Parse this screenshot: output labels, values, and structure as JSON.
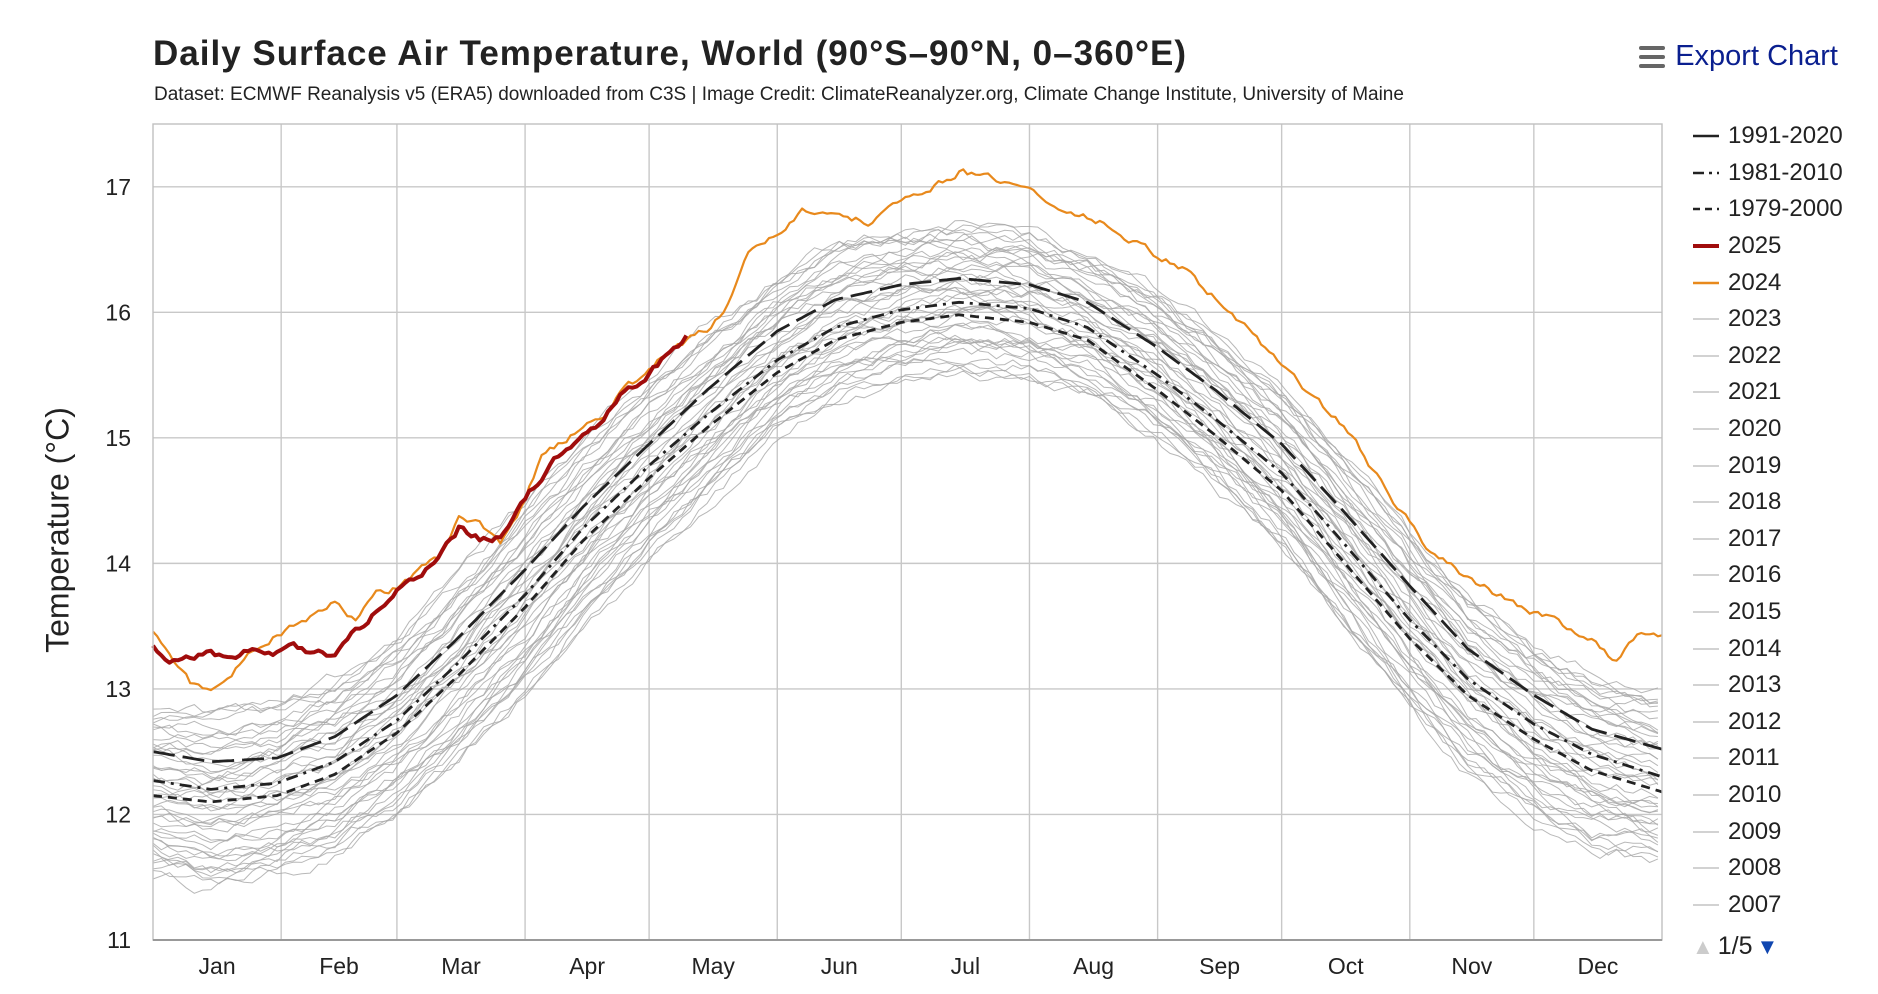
{
  "header": {
    "title": "Daily Surface Air Temperature, World (90°S–90°N, 0–360°E)",
    "subtitle": "Dataset: ECMWF Reanalysis v5 (ERA5) downloaded from C3S | Image Credit: ClimateReanalyzer.org, Climate Change Institute, University of Maine",
    "export_label": "Export Chart",
    "export_icon": "hamburger-menu-icon"
  },
  "legend": {
    "page_label": "1/5",
    "page_up_icon": "triangle-up-icon",
    "page_down_icon": "triangle-down-icon"
  },
  "colors": {
    "climatology": "#222222",
    "year_2025": "#a00c0c",
    "year_2024": "#e8891c",
    "past_years": "#a6a6a6",
    "grid": "#c8c8c8"
  },
  "chart_data": {
    "type": "line",
    "title": "Daily Surface Air Temperature, World (90°S–90°N, 0–360°E)",
    "ylabel": "Temperature (°C)",
    "xlabel": "",
    "ylim": [
      11,
      17.5
    ],
    "xlim_day_of_year": [
      1,
      366
    ],
    "yticks": [
      11,
      12,
      13,
      14,
      15,
      16,
      17
    ],
    "months": [
      "Jan",
      "Feb",
      "Mar",
      "Apr",
      "May",
      "Jun",
      "Jul",
      "Aug",
      "Sep",
      "Oct",
      "Nov",
      "Dec"
    ],
    "grid": true,
    "legend_position": "right",
    "series": [
      {
        "name": "1991-2020",
        "style": "longdash",
        "color": "#222222",
        "points": [
          [
            1,
            12.5
          ],
          [
            15,
            12.42
          ],
          [
            31,
            12.45
          ],
          [
            45,
            12.62
          ],
          [
            60,
            12.95
          ],
          [
            74,
            13.38
          ],
          [
            91,
            13.95
          ],
          [
            105,
            14.45
          ],
          [
            121,
            14.95
          ],
          [
            135,
            15.38
          ],
          [
            152,
            15.85
          ],
          [
            166,
            16.1
          ],
          [
            182,
            16.22
          ],
          [
            196,
            16.27
          ],
          [
            213,
            16.22
          ],
          [
            227,
            16.08
          ],
          [
            244,
            15.72
          ],
          [
            258,
            15.38
          ],
          [
            274,
            14.95
          ],
          [
            288,
            14.45
          ],
          [
            305,
            13.82
          ],
          [
            319,
            13.32
          ],
          [
            335,
            12.95
          ],
          [
            349,
            12.68
          ],
          [
            366,
            12.52
          ]
        ]
      },
      {
        "name": "1981-2010",
        "style": "dashdot",
        "color": "#222222",
        "points": [
          [
            1,
            12.27
          ],
          [
            15,
            12.2
          ],
          [
            31,
            12.25
          ],
          [
            45,
            12.42
          ],
          [
            60,
            12.75
          ],
          [
            74,
            13.18
          ],
          [
            91,
            13.75
          ],
          [
            105,
            14.28
          ],
          [
            121,
            14.78
          ],
          [
            135,
            15.18
          ],
          [
            152,
            15.62
          ],
          [
            166,
            15.88
          ],
          [
            182,
            16.02
          ],
          [
            196,
            16.08
          ],
          [
            213,
            16.03
          ],
          [
            227,
            15.88
          ],
          [
            244,
            15.5
          ],
          [
            258,
            15.15
          ],
          [
            274,
            14.72
          ],
          [
            288,
            14.2
          ],
          [
            305,
            13.55
          ],
          [
            319,
            13.08
          ],
          [
            335,
            12.72
          ],
          [
            349,
            12.48
          ],
          [
            366,
            12.3
          ]
        ]
      },
      {
        "name": "1979-2000",
        "style": "dash",
        "color": "#222222",
        "points": [
          [
            1,
            12.15
          ],
          [
            15,
            12.1
          ],
          [
            31,
            12.15
          ],
          [
            45,
            12.32
          ],
          [
            60,
            12.65
          ],
          [
            74,
            13.08
          ],
          [
            91,
            13.65
          ],
          [
            105,
            14.18
          ],
          [
            121,
            14.68
          ],
          [
            135,
            15.08
          ],
          [
            152,
            15.52
          ],
          [
            166,
            15.78
          ],
          [
            182,
            15.92
          ],
          [
            196,
            15.98
          ],
          [
            213,
            15.92
          ],
          [
            227,
            15.78
          ],
          [
            244,
            15.38
          ],
          [
            258,
            15.02
          ],
          [
            274,
            14.58
          ],
          [
            288,
            14.05
          ],
          [
            305,
            13.4
          ],
          [
            319,
            12.95
          ],
          [
            335,
            12.6
          ],
          [
            349,
            12.35
          ],
          [
            366,
            12.18
          ]
        ]
      },
      {
        "name": "2025",
        "style": "solid-bold",
        "color": "#a00c0c",
        "points": [
          [
            1,
            13.32
          ],
          [
            5,
            13.18
          ],
          [
            10,
            13.25
          ],
          [
            15,
            13.3
          ],
          [
            20,
            13.25
          ],
          [
            25,
            13.3
          ],
          [
            30,
            13.25
          ],
          [
            35,
            13.35
          ],
          [
            40,
            13.28
          ],
          [
            45,
            13.25
          ],
          [
            50,
            13.45
          ],
          [
            55,
            13.62
          ],
          [
            60,
            13.82
          ],
          [
            65,
            13.88
          ],
          [
            70,
            14.05
          ],
          [
            75,
            14.28
          ],
          [
            80,
            14.2
          ],
          [
            85,
            14.22
          ],
          [
            90,
            14.5
          ],
          [
            95,
            14.7
          ],
          [
            100,
            14.88
          ],
          [
            105,
            15.05
          ],
          [
            110,
            15.12
          ],
          [
            115,
            15.38
          ],
          [
            120,
            15.45
          ],
          [
            125,
            15.65
          ],
          [
            130,
            15.8
          ]
        ]
      },
      {
        "name": "2024",
        "style": "solid",
        "color": "#e8891c",
        "points": [
          [
            1,
            13.45
          ],
          [
            10,
            13.05
          ],
          [
            15,
            12.98
          ],
          [
            25,
            13.3
          ],
          [
            35,
            13.52
          ],
          [
            40,
            13.6
          ],
          [
            45,
            13.68
          ],
          [
            50,
            13.55
          ],
          [
            55,
            13.75
          ],
          [
            60,
            13.8
          ],
          [
            70,
            14.05
          ],
          [
            75,
            14.38
          ],
          [
            80,
            14.3
          ],
          [
            85,
            14.18
          ],
          [
            90,
            14.45
          ],
          [
            95,
            14.85
          ],
          [
            100,
            14.95
          ],
          [
            105,
            15.12
          ],
          [
            110,
            15.2
          ],
          [
            115,
            15.38
          ],
          [
            120,
            15.5
          ],
          [
            125,
            15.68
          ],
          [
            130,
            15.78
          ],
          [
            135,
            15.85
          ],
          [
            140,
            16.05
          ],
          [
            145,
            16.45
          ],
          [
            152,
            16.62
          ],
          [
            158,
            16.82
          ],
          [
            165,
            16.75
          ],
          [
            175,
            16.72
          ],
          [
            182,
            16.88
          ],
          [
            188,
            16.98
          ],
          [
            196,
            17.12
          ],
          [
            205,
            17.05
          ],
          [
            213,
            16.98
          ],
          [
            220,
            16.82
          ],
          [
            230,
            16.72
          ],
          [
            240,
            16.52
          ],
          [
            250,
            16.35
          ],
          [
            260,
            16.05
          ],
          [
            270,
            15.72
          ],
          [
            280,
            15.38
          ],
          [
            290,
            15.05
          ],
          [
            300,
            14.55
          ],
          [
            310,
            14.08
          ],
          [
            320,
            13.88
          ],
          [
            330,
            13.68
          ],
          [
            340,
            13.55
          ],
          [
            350,
            13.38
          ],
          [
            355,
            13.22
          ],
          [
            360,
            13.45
          ],
          [
            366,
            13.42
          ]
        ]
      }
    ],
    "legend_entries": [
      {
        "name": "1991-2020",
        "style": "longdash",
        "color": "#222222"
      },
      {
        "name": "1981-2010",
        "style": "dashdot",
        "color": "#222222"
      },
      {
        "name": "1979-2000",
        "style": "dash",
        "color": "#222222"
      },
      {
        "name": "2025",
        "style": "solid-bold",
        "color": "#a00c0c"
      },
      {
        "name": "2024",
        "style": "solid",
        "color": "#e8891c"
      },
      {
        "name": "2023",
        "style": "thin",
        "color": "#a6a6a6"
      },
      {
        "name": "2022",
        "style": "thin",
        "color": "#a6a6a6"
      },
      {
        "name": "2021",
        "style": "thin",
        "color": "#a6a6a6"
      },
      {
        "name": "2020",
        "style": "thin",
        "color": "#a6a6a6"
      },
      {
        "name": "2019",
        "style": "thin",
        "color": "#a6a6a6"
      },
      {
        "name": "2018",
        "style": "thin",
        "color": "#a6a6a6"
      },
      {
        "name": "2017",
        "style": "thin",
        "color": "#a6a6a6"
      },
      {
        "name": "2016",
        "style": "thin",
        "color": "#a6a6a6"
      },
      {
        "name": "2015",
        "style": "thin",
        "color": "#a6a6a6"
      },
      {
        "name": "2014",
        "style": "thin",
        "color": "#a6a6a6"
      },
      {
        "name": "2013",
        "style": "thin",
        "color": "#a6a6a6"
      },
      {
        "name": "2012",
        "style": "thin",
        "color": "#a6a6a6"
      },
      {
        "name": "2011",
        "style": "thin",
        "color": "#a6a6a6"
      },
      {
        "name": "2010",
        "style": "thin",
        "color": "#a6a6a6"
      },
      {
        "name": "2009",
        "style": "thin",
        "color": "#a6a6a6"
      },
      {
        "name": "2008",
        "style": "thin",
        "color": "#a6a6a6"
      },
      {
        "name": "2007",
        "style": "thin",
        "color": "#a6a6a6"
      }
    ],
    "past_years_envelope": {
      "color": "#a6a6a6",
      "lower": [
        [
          1,
          11.45
        ],
        [
          15,
          11.35
        ],
        [
          31,
          11.45
        ],
        [
          45,
          11.6
        ],
        [
          60,
          11.9
        ],
        [
          74,
          12.3
        ],
        [
          91,
          12.85
        ],
        [
          105,
          13.4
        ],
        [
          121,
          13.95
        ],
        [
          135,
          14.4
        ],
        [
          152,
          14.95
        ],
        [
          166,
          15.25
        ],
        [
          182,
          15.4
        ],
        [
          196,
          15.48
        ],
        [
          213,
          15.45
        ],
        [
          227,
          15.3
        ],
        [
          244,
          14.95
        ],
        [
          258,
          14.55
        ],
        [
          274,
          14.05
        ],
        [
          288,
          13.45
        ],
        [
          305,
          12.75
        ],
        [
          319,
          12.25
        ],
        [
          335,
          11.9
        ],
        [
          349,
          11.65
        ],
        [
          366,
          11.55
        ]
      ],
      "upper": [
        [
          1,
          12.9
        ],
        [
          15,
          12.85
        ],
        [
          31,
          12.95
        ],
        [
          45,
          13.15
        ],
        [
          60,
          13.5
        ],
        [
          74,
          13.95
        ],
        [
          91,
          14.55
        ],
        [
          105,
          15.05
        ],
        [
          121,
          15.55
        ],
        [
          135,
          15.95
        ],
        [
          152,
          16.35
        ],
        [
          166,
          16.6
        ],
        [
          182,
          16.72
        ],
        [
          196,
          16.78
        ],
        [
          213,
          16.7
        ],
        [
          227,
          16.55
        ],
        [
          244,
          16.25
        ],
        [
          258,
          15.9
        ],
        [
          274,
          15.5
        ],
        [
          288,
          15.0
        ],
        [
          305,
          14.35
        ],
        [
          319,
          13.85
        ],
        [
          335,
          13.45
        ],
        [
          349,
          13.2
        ],
        [
          366,
          13.05
        ]
      ]
    }
  }
}
